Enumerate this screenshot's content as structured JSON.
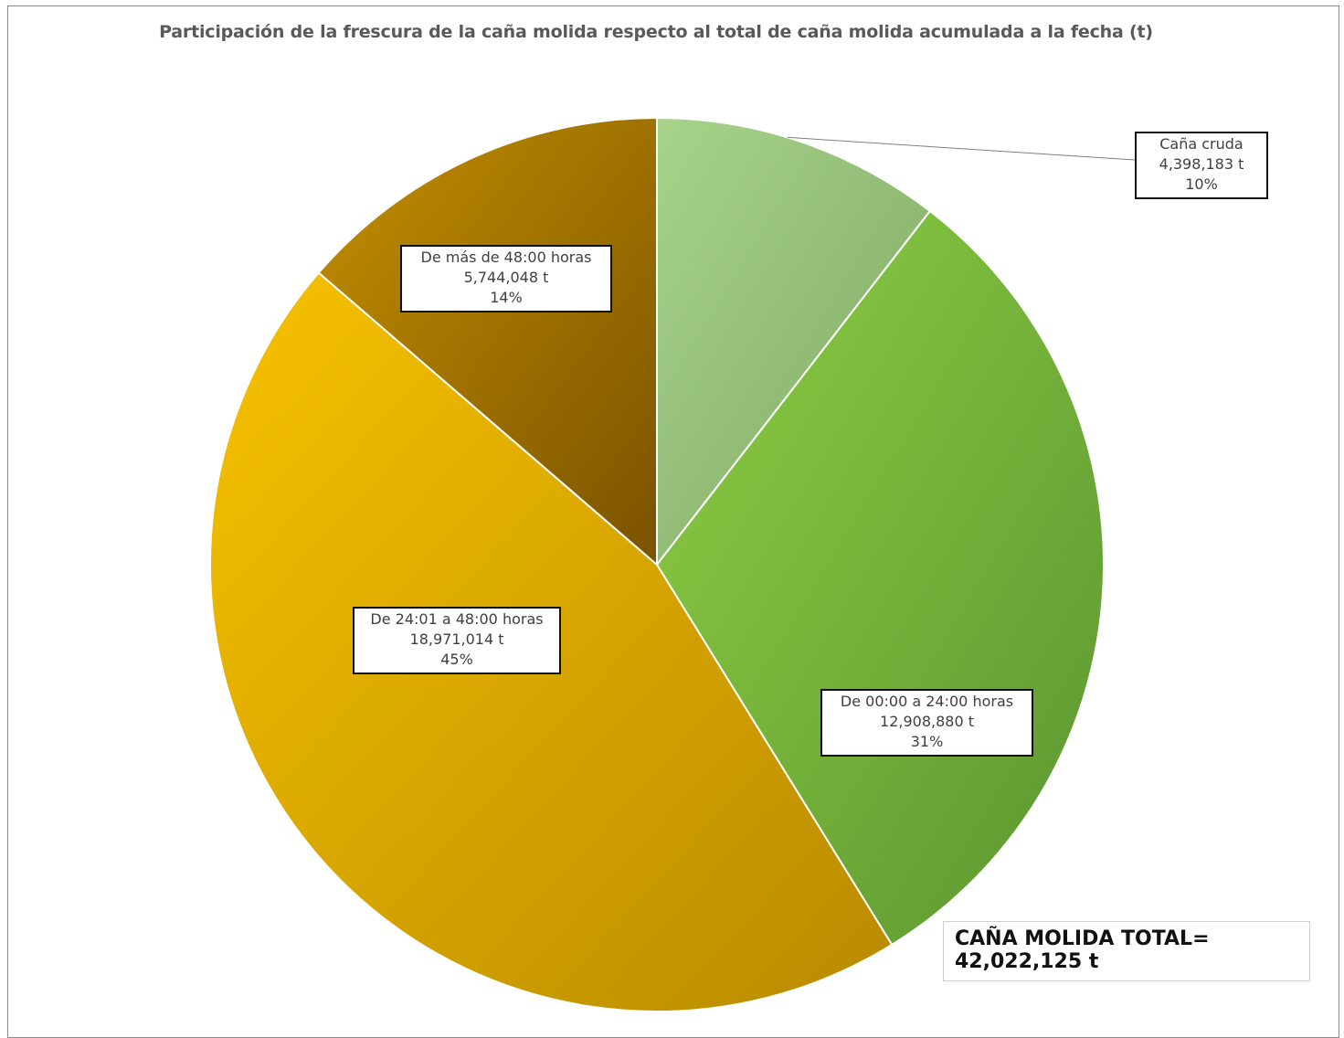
{
  "chart_data": {
    "type": "pie",
    "title": "Participación de la frescura de la caña molida respecto al total de caña molida acumulada a la fecha (t)",
    "slices": [
      {
        "name": "Caña cruda",
        "value_text": "4,398,183 t",
        "value": 4398183,
        "percent_text": "10%",
        "colors": [
          "#a8d38a",
          "#7fa864"
        ]
      },
      {
        "name": "De 00:00 a 24:00 horas",
        "value_text": "12,908,880 t",
        "value": 12908880,
        "percent_text": "31%",
        "colors": [
          "#8fd044",
          "#5a9430"
        ]
      },
      {
        "name": "De 24:01 a 48:00 horas",
        "value_text": "18,971,014 t",
        "value": 18971014,
        "percent_text": "45%",
        "colors": [
          "#f8c200",
          "#b88a00"
        ]
      },
      {
        "name": "De más de 48:00 horas",
        "value_text": "5,744,048 t",
        "value": 5744048,
        "percent_text": "14%",
        "colors": [
          "#c49000",
          "#7a5200"
        ]
      }
    ],
    "total": {
      "label": "CAÑA MOLIDA TOTAL=",
      "value_text": "42,022,125 t"
    }
  }
}
